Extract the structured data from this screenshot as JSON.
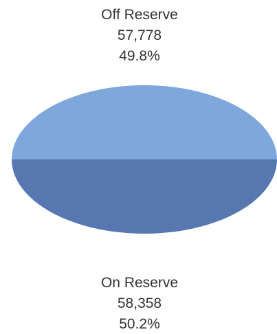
{
  "chart_data": {
    "type": "pie",
    "title": "",
    "slices": [
      {
        "label": "Off Reserve",
        "value": 57778,
        "value_label": "57,778",
        "percent_label": "49.8%",
        "color": "#7ea7dc"
      },
      {
        "label": "On Reserve",
        "value": 58358,
        "value_label": "58,358",
        "percent_label": "50.2%",
        "color": "#5677b0"
      }
    ]
  }
}
